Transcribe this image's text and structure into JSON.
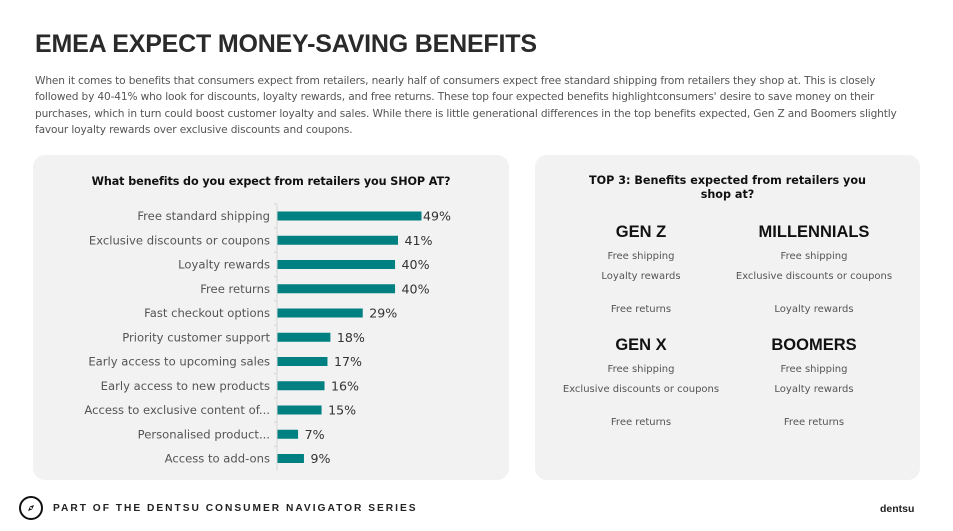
{
  "page": {
    "title": "EMEA EXPECT MONEY-SAVING BENEFITS",
    "intro": "When it comes to benefits that consumers expect from retailers, nearly half of consumers expect free standard shipping from retailers they shop at. This is closely followed by 40-41% who look for discounts, loyalty rewards, and free returns. These top four expected benefits highlightconsumers' desire to save money on their purchases, which in turn could boost customer loyalty and sales. While there is little generational differences in the top benefits expected, Gen Z and Boomers slightly favour loyalty rewards over exclusive discounts and coupons."
  },
  "chart_data": {
    "type": "bar",
    "orientation": "horizontal",
    "title": "What benefits do you expect from retailers you SHOP AT?",
    "categories": [
      "Free standard shipping",
      "Exclusive discounts or coupons",
      "Loyalty rewards",
      "Free returns",
      "Fast checkout options",
      "Priority customer support",
      "Early access to upcoming sales",
      "Early access to new products",
      "Access to exclusive content of...",
      "Personalised product...",
      "Access to add-ons"
    ],
    "values": [
      49,
      41,
      40,
      40,
      29,
      18,
      17,
      16,
      15,
      7,
      9
    ],
    "value_labels": [
      "49%",
      "41%",
      "40%",
      "40%",
      "29%",
      "18%",
      "17%",
      "16%",
      "15%",
      "7%",
      "9%"
    ],
    "unit": "%",
    "xlim": [
      0,
      49
    ],
    "xlabel": "",
    "ylabel": "",
    "grid": false,
    "bar_color": "#008080"
  },
  "top3": {
    "title": "TOP 3: Benefits expected from retailers you shop at?",
    "groups": [
      {
        "name": "GEN Z",
        "items": [
          "Free shipping",
          "Loyalty rewards",
          "Free returns"
        ]
      },
      {
        "name": "MILLENNIALS",
        "items": [
          "Free shipping",
          "Exclusive discounts or coupons",
          "Loyalty rewards"
        ]
      },
      {
        "name": "GEN X",
        "items": [
          "Free shipping",
          "Exclusive discounts or coupons",
          "Free returns"
        ]
      },
      {
        "name": "BOOMERS",
        "items": [
          "Free shipping",
          "Loyalty rewards",
          "Free returns"
        ]
      }
    ]
  },
  "footer": {
    "icon": "compass-icon",
    "series_text": "PART OF THE DENTSU CONSUMER NAVIGATOR SERIES",
    "brand": "dentsu"
  }
}
